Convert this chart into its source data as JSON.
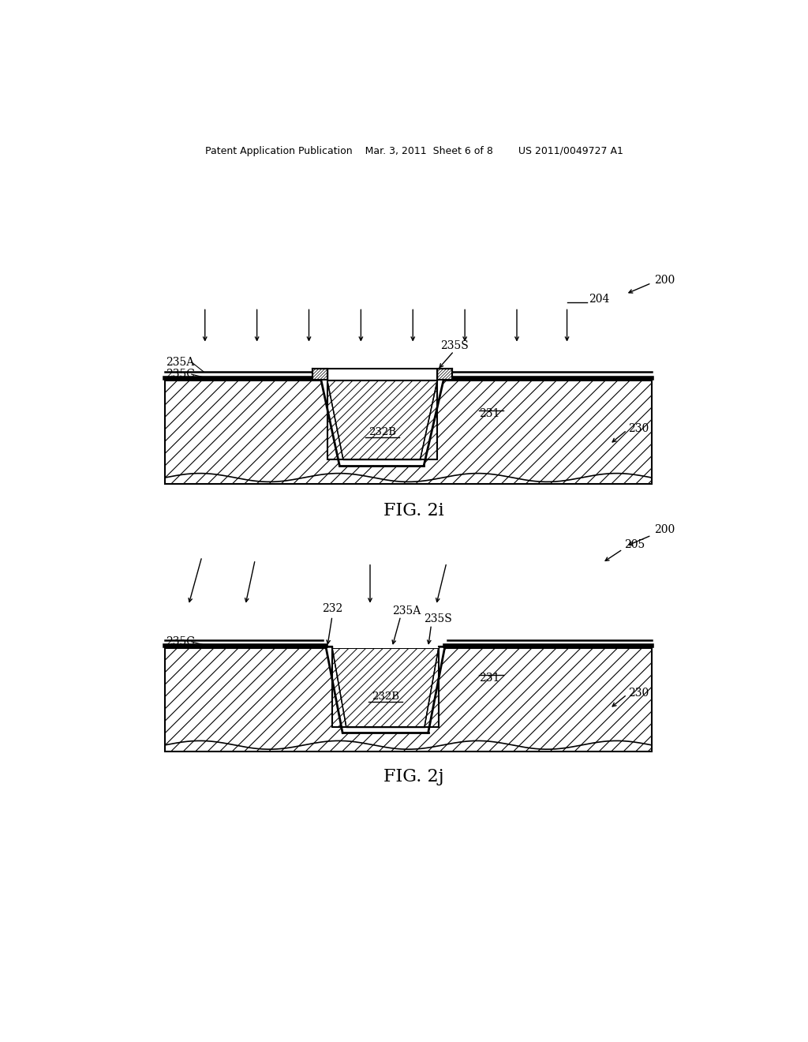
{
  "bg_color": "#ffffff",
  "line_color": "#000000",
  "header_text": "Patent Application Publication    Mar. 3, 2011  Sheet 6 of 8        US 2011/0049727 A1",
  "fig1_label": "FIG. 2i",
  "fig2_label": "FIG. 2j"
}
